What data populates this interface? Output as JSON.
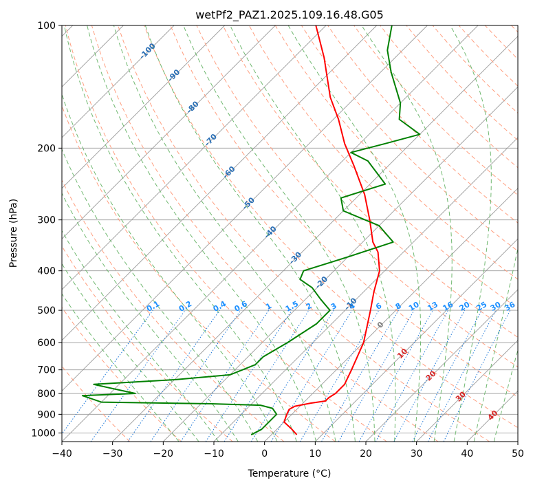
{
  "chart_data": {
    "type": "line",
    "title": "wetPf2_PAZ1.2025.109.16.48.G05",
    "xlabel": "Temperature (°C)",
    "ylabel": "Pressure (hPa)",
    "xlim": [
      -40,
      50
    ],
    "ylim": [
      1050,
      100
    ],
    "y_scale": "log",
    "grid": true,
    "x_ticks": [
      -40,
      -30,
      -20,
      -10,
      0,
      10,
      20,
      30,
      40,
      50
    ],
    "y_ticks": [
      100,
      200,
      300,
      400,
      500,
      600,
      700,
      800,
      900,
      1000
    ],
    "colors": {
      "temperature": "#ff0000",
      "dewpoint": "#008000",
      "isotherm": "#999999",
      "dry_adiabat": "#ff9f80",
      "moist_adiabat": "#70b870",
      "mixing_ratio": "#1e78d8",
      "label_blue": "#2a6fb5",
      "label_red": "#d62728",
      "label_gray": "#7f7f7f",
      "label_mixing": "#1e90ff"
    },
    "isotherm_labels": [
      {
        "text": "-100",
        "temp": -100,
        "p": 115
      },
      {
        "text": "-90",
        "temp": -90,
        "p": 132
      },
      {
        "text": "-80",
        "temp": -80,
        "p": 158
      },
      {
        "text": "-70",
        "temp": -70,
        "p": 190
      },
      {
        "text": "-60",
        "temp": -60,
        "p": 228
      },
      {
        "text": "-50",
        "temp": -50,
        "p": 272
      },
      {
        "text": "-40",
        "temp": -40,
        "p": 320
      },
      {
        "text": "-30",
        "temp": -30,
        "p": 370
      },
      {
        "text": "-20",
        "temp": -20,
        "p": 425
      },
      {
        "text": "-10",
        "temp": -10,
        "p": 480
      }
    ],
    "positive_isotherm_labels": [
      {
        "text": "0",
        "temp": 0,
        "p": 540
      },
      {
        "text": "10",
        "temp": 10,
        "p": 635
      },
      {
        "text": "20",
        "temp": 20,
        "p": 720
      },
      {
        "text": "30",
        "temp": 30,
        "p": 810
      },
      {
        "text": "40",
        "temp": 40,
        "p": 900
      }
    ],
    "mixing_ratio_labels": [
      "0.1",
      "0.2",
      "0.4",
      "0.6",
      "1",
      "1.5",
      "2",
      "3",
      "4",
      "6",
      "8",
      "10",
      "13",
      "16",
      "20",
      "25",
      "30",
      "36"
    ],
    "series": [
      {
        "name": "temperature",
        "points": [
          {
            "p": 1010,
            "t": 5
          },
          {
            "p": 980,
            "t": 3
          },
          {
            "p": 940,
            "t": 0
          },
          {
            "p": 900,
            "t": -1
          },
          {
            "p": 875,
            "t": -1.5
          },
          {
            "p": 860,
            "t": -1
          },
          {
            "p": 845,
            "t": 1.5
          },
          {
            "p": 835,
            "t": 4
          },
          {
            "p": 820,
            "t": 4
          },
          {
            "p": 800,
            "t": 4.5
          },
          {
            "p": 760,
            "t": 4.5
          },
          {
            "p": 700,
            "t": 3
          },
          {
            "p": 600,
            "t": 0
          },
          {
            "p": 500,
            "t": -5
          },
          {
            "p": 450,
            "t": -8
          },
          {
            "p": 400,
            "t": -11
          },
          {
            "p": 360,
            "t": -15
          },
          {
            "p": 340,
            "t": -18
          },
          {
            "p": 300,
            "t": -23
          },
          {
            "p": 260,
            "t": -29
          },
          {
            "p": 220,
            "t": -37
          },
          {
            "p": 195,
            "t": -43
          },
          {
            "p": 170,
            "t": -49
          },
          {
            "p": 150,
            "t": -55
          },
          {
            "p": 120,
            "t": -64
          },
          {
            "p": 100,
            "t": -72
          }
        ]
      },
      {
        "name": "dewpoint",
        "points": [
          {
            "p": 1010,
            "t": -4
          },
          {
            "p": 980,
            "t": -3
          },
          {
            "p": 900,
            "t": -3
          },
          {
            "p": 870,
            "t": -5
          },
          {
            "p": 855,
            "t": -8
          },
          {
            "p": 848,
            "t": -18
          },
          {
            "p": 840,
            "t": -40
          },
          {
            "p": 810,
            "t": -45
          },
          {
            "p": 800,
            "t": -35
          },
          {
            "p": 780,
            "t": -40
          },
          {
            "p": 760,
            "t": -45
          },
          {
            "p": 740,
            "t": -30
          },
          {
            "p": 720,
            "t": -20
          },
          {
            "p": 680,
            "t": -17
          },
          {
            "p": 650,
            "t": -17
          },
          {
            "p": 600,
            "t": -15
          },
          {
            "p": 540,
            "t": -13
          },
          {
            "p": 500,
            "t": -13
          },
          {
            "p": 470,
            "t": -17
          },
          {
            "p": 440,
            "t": -21
          },
          {
            "p": 420,
            "t": -25
          },
          {
            "p": 400,
            "t": -26
          },
          {
            "p": 370,
            "t": -20
          },
          {
            "p": 340,
            "t": -14
          },
          {
            "p": 310,
            "t": -20
          },
          {
            "p": 285,
            "t": -30
          },
          {
            "p": 265,
            "t": -33
          },
          {
            "p": 245,
            "t": -27
          },
          {
            "p": 215,
            "t": -35
          },
          {
            "p": 205,
            "t": -40
          },
          {
            "p": 195,
            "t": -35
          },
          {
            "p": 185,
            "t": -30
          },
          {
            "p": 170,
            "t": -37
          },
          {
            "p": 155,
            "t": -40
          },
          {
            "p": 130,
            "t": -48
          },
          {
            "p": 115,
            "t": -53
          },
          {
            "p": 100,
            "t": -57
          }
        ]
      }
    ]
  }
}
